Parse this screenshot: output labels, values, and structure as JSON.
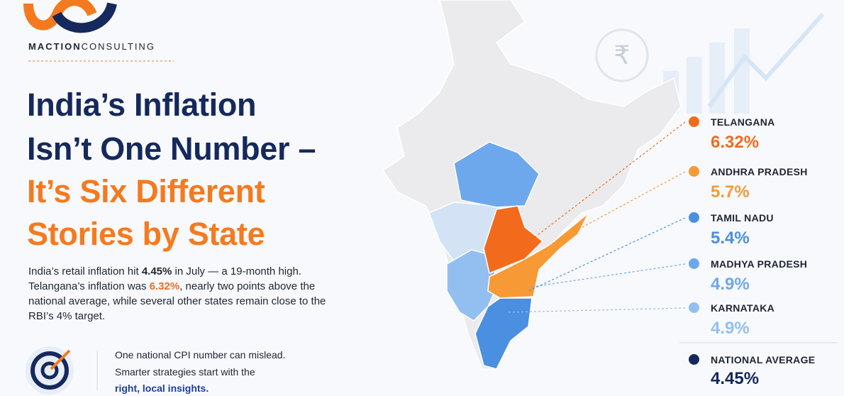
{
  "brand": {
    "name_bold": "MACTION",
    "name_light": "CONSULTING"
  },
  "headline": {
    "lines": [
      "India’s Inflation",
      "Isn’t One Number –",
      "It’s Six Different",
      "Stories by State"
    ]
  },
  "intro": {
    "segments": [
      {
        "text": "India’s retail inflation hit ",
        "style": "normal"
      },
      {
        "text": "4.45%",
        "style": "bold"
      },
      {
        "text": " in July — a 19-month high. Telangana’s inflation was ",
        "style": "normal"
      },
      {
        "text": "6.32%",
        "style": "accent"
      },
      {
        "text": ", nearly two points above the national average, while several other states remain close to the RBI’s 4% target.",
        "style": "normal"
      }
    ]
  },
  "callout": {
    "lines": [
      "One national CPI number can mislead.",
      "Smarter strategies start with the",
      "right, local insights."
    ]
  },
  "rupee_symbol": "₹",
  "legend": {
    "items": [
      {
        "state": "TELANGANA",
        "value": "6.32%",
        "color": "#f26b1d"
      },
      {
        "state": "ANDHRA PRADESH",
        "value": "5.7%",
        "color": "#f79a35"
      },
      {
        "state": "TAMIL NADU",
        "value": "5.4%",
        "color": "#4a8fe0"
      },
      {
        "state": "MADHYA PRADESH",
        "value": "4.9%",
        "color": "#6ea8ec"
      },
      {
        "state": "KARNATAKA",
        "value": "4.9%",
        "color": "#93bff0"
      }
    ],
    "national": {
      "label": "NATIONAL AVERAGE",
      "value": "4.45%",
      "color": "#14285a"
    }
  }
}
